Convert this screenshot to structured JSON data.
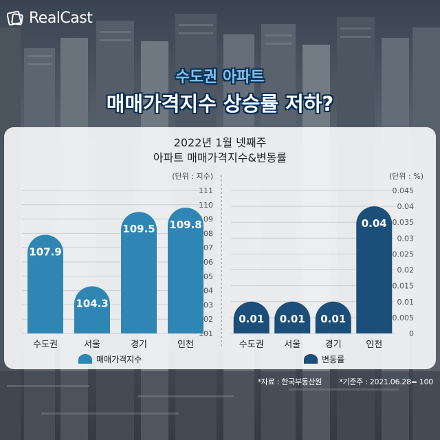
{
  "brand": {
    "name": "RealCast",
    "icon": "realcast-logo-icon"
  },
  "title": {
    "line1": "수도권 아파트",
    "line2": "매매가격지수 상승률 저하?"
  },
  "panel": {
    "title_line1": "2022년 1월 넷째주",
    "title_line2": "아파트 매매가격지수&변동률"
  },
  "footer": {
    "source": "*자료 : 한국부동산원",
    "base": "*기준주 : 2021.06.28= 100"
  },
  "colors": {
    "bar_light": "#2f86b4",
    "bar_dark": "#1b4f7a",
    "title_accent": "#7fc4ef"
  },
  "chart_data": [
    {
      "type": "bar",
      "unit_label": "(단위 : 지수)",
      "categories": [
        "수도권",
        "서울",
        "경기",
        "인천"
      ],
      "values": [
        107.9,
        104.3,
        109.5,
        109.8
      ],
      "value_labels": [
        "107.9",
        "104.3",
        "109.5",
        "109.8"
      ],
      "ylim": [
        101,
        111
      ],
      "yticks": [
        "101",
        "102",
        "103",
        "104",
        "105",
        "106",
        "107",
        "108",
        "109",
        "110",
        "111"
      ],
      "legend": "매매가격지수",
      "legend_position": "bottom",
      "color": "#2f86b4",
      "grid": true
    },
    {
      "type": "bar",
      "unit_label": "(단위 : %)",
      "categories": [
        "수도권",
        "서울",
        "경기",
        "인천"
      ],
      "values": [
        0.01,
        0.01,
        0.01,
        0.04
      ],
      "value_labels": [
        "0.01",
        "0.01",
        "0.01",
        "0.04"
      ],
      "ylim": [
        0,
        0.045
      ],
      "yticks": [
        "0",
        "0.005",
        "0.01",
        "0.015",
        "0.02",
        "0.025",
        "0.03",
        "0.035",
        "0.04",
        "0.045"
      ],
      "legend": "변동률",
      "legend_position": "bottom",
      "color": "#1b4f7a",
      "grid": true
    }
  ]
}
